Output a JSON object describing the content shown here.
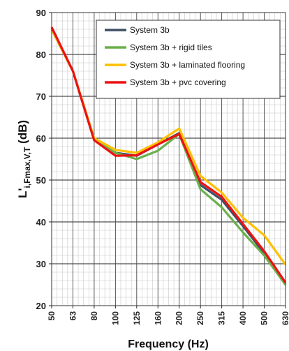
{
  "chart_data": {
    "type": "line",
    "title": "",
    "xlabel": "Frequency (Hz)",
    "ylabel": {
      "main": "L'",
      "subscript": "i,Fmax,V,T",
      "unit": " (dB)"
    },
    "categories": [
      "50",
      "63",
      "80",
      "100",
      "125",
      "160",
      "200",
      "250",
      "315",
      "400",
      "500",
      "630"
    ],
    "ylim": [
      20,
      90
    ],
    "yticks": [
      20,
      30,
      40,
      50,
      60,
      70,
      80,
      90
    ],
    "grid": true,
    "legend_position": "top-right",
    "series": [
      {
        "name": "System 3b",
        "color": "#3d4f66",
        "values": [
          86,
          76,
          59.5,
          56.5,
          55.8,
          58.5,
          61.2,
          48.8,
          45.3,
          39,
          32.5,
          25
        ]
      },
      {
        "name": "System 3b + rigid tiles",
        "color": "#6ab04c",
        "values": [
          86,
          76,
          59.5,
          56.5,
          55,
          57,
          61,
          47.8,
          43.5,
          37.5,
          32,
          25
        ]
      },
      {
        "name": "System 3b + laminated flooring",
        "color": "#ffc000",
        "values": [
          86,
          76,
          60,
          57.2,
          56.5,
          59,
          62.3,
          51,
          47,
          41,
          36.8,
          29.8
        ]
      },
      {
        "name": "System 3b + pvc covering",
        "color": "#ee1111",
        "values": [
          86.5,
          76,
          59.5,
          55.8,
          55.9,
          58.5,
          61,
          49.5,
          46,
          39.5,
          33,
          25.5
        ]
      }
    ]
  }
}
